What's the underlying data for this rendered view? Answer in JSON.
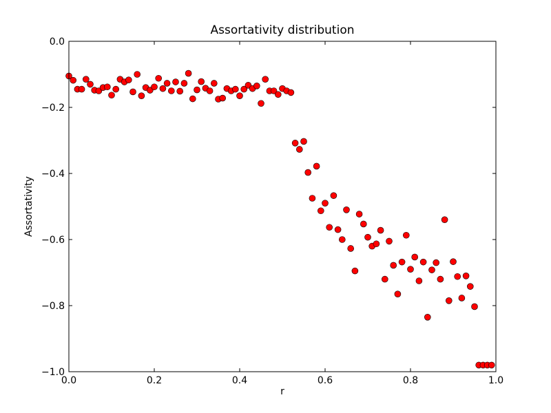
{
  "chart_data": {
    "type": "scatter",
    "title": "Assortativity distribution",
    "xlabel": "r",
    "ylabel": "Assortativity",
    "xlim": [
      0.0,
      1.0
    ],
    "ylim": [
      -1.0,
      0.0
    ],
    "xticks": [
      "0.0",
      "0.2",
      "0.4",
      "0.6",
      "0.8",
      "1.0"
    ],
    "yticks": [
      "0.0",
      "−0.2",
      "−0.4",
      "−0.6",
      "−0.8",
      "−1.0"
    ],
    "grid": false,
    "marker_color": "#ff0000",
    "marker_edge_color": "#000000",
    "points": [
      [
        0.0,
        -0.105
      ],
      [
        0.01,
        -0.118
      ],
      [
        0.02,
        -0.145
      ],
      [
        0.03,
        -0.145
      ],
      [
        0.04,
        -0.115
      ],
      [
        0.05,
        -0.13
      ],
      [
        0.06,
        -0.148
      ],
      [
        0.07,
        -0.15
      ],
      [
        0.08,
        -0.14
      ],
      [
        0.09,
        -0.138
      ],
      [
        0.1,
        -0.163
      ],
      [
        0.11,
        -0.145
      ],
      [
        0.12,
        -0.115
      ],
      [
        0.13,
        -0.123
      ],
      [
        0.14,
        -0.117
      ],
      [
        0.15,
        -0.153
      ],
      [
        0.16,
        -0.1
      ],
      [
        0.17,
        -0.165
      ],
      [
        0.18,
        -0.14
      ],
      [
        0.19,
        -0.148
      ],
      [
        0.2,
        -0.138
      ],
      [
        0.21,
        -0.112
      ],
      [
        0.22,
        -0.143
      ],
      [
        0.23,
        -0.127
      ],
      [
        0.24,
        -0.15
      ],
      [
        0.25,
        -0.123
      ],
      [
        0.26,
        -0.151
      ],
      [
        0.27,
        -0.127
      ],
      [
        0.28,
        -0.097
      ],
      [
        0.29,
        -0.174
      ],
      [
        0.3,
        -0.147
      ],
      [
        0.31,
        -0.122
      ],
      [
        0.32,
        -0.142
      ],
      [
        0.33,
        -0.15
      ],
      [
        0.34,
        -0.127
      ],
      [
        0.35,
        -0.175
      ],
      [
        0.36,
        -0.172
      ],
      [
        0.37,
        -0.143
      ],
      [
        0.38,
        -0.15
      ],
      [
        0.39,
        -0.145
      ],
      [
        0.4,
        -0.165
      ],
      [
        0.41,
        -0.145
      ],
      [
        0.42,
        -0.133
      ],
      [
        0.43,
        -0.143
      ],
      [
        0.44,
        -0.135
      ],
      [
        0.45,
        -0.188
      ],
      [
        0.46,
        -0.115
      ],
      [
        0.47,
        -0.15
      ],
      [
        0.48,
        -0.15
      ],
      [
        0.49,
        -0.161
      ],
      [
        0.5,
        -0.143
      ],
      [
        0.51,
        -0.15
      ],
      [
        0.52,
        -0.155
      ],
      [
        0.53,
        -0.308
      ],
      [
        0.54,
        -0.327
      ],
      [
        0.55,
        -0.303
      ],
      [
        0.56,
        -0.397
      ],
      [
        0.57,
        -0.475
      ],
      [
        0.58,
        -0.378
      ],
      [
        0.59,
        -0.513
      ],
      [
        0.6,
        -0.49
      ],
      [
        0.61,
        -0.563
      ],
      [
        0.62,
        -0.467
      ],
      [
        0.63,
        -0.57
      ],
      [
        0.64,
        -0.6
      ],
      [
        0.65,
        -0.51
      ],
      [
        0.66,
        -0.627
      ],
      [
        0.67,
        -0.695
      ],
      [
        0.68,
        -0.523
      ],
      [
        0.69,
        -0.553
      ],
      [
        0.7,
        -0.593
      ],
      [
        0.71,
        -0.62
      ],
      [
        0.72,
        -0.613
      ],
      [
        0.73,
        -0.572
      ],
      [
        0.74,
        -0.72
      ],
      [
        0.75,
        -0.605
      ],
      [
        0.76,
        -0.678
      ],
      [
        0.77,
        -0.765
      ],
      [
        0.78,
        -0.668
      ],
      [
        0.79,
        -0.587
      ],
      [
        0.8,
        -0.69
      ],
      [
        0.81,
        -0.653
      ],
      [
        0.82,
        -0.725
      ],
      [
        0.83,
        -0.668
      ],
      [
        0.84,
        -0.835
      ],
      [
        0.85,
        -0.692
      ],
      [
        0.86,
        -0.67
      ],
      [
        0.87,
        -0.72
      ],
      [
        0.88,
        -0.54
      ],
      [
        0.89,
        -0.785
      ],
      [
        0.9,
        -0.667
      ],
      [
        0.91,
        -0.712
      ],
      [
        0.92,
        -0.777
      ],
      [
        0.93,
        -0.71
      ],
      [
        0.94,
        -0.742
      ],
      [
        0.95,
        -0.803
      ],
      [
        0.96,
        -0.98
      ],
      [
        0.97,
        -0.98
      ],
      [
        0.98,
        -0.98
      ],
      [
        0.99,
        -0.98
      ]
    ]
  }
}
